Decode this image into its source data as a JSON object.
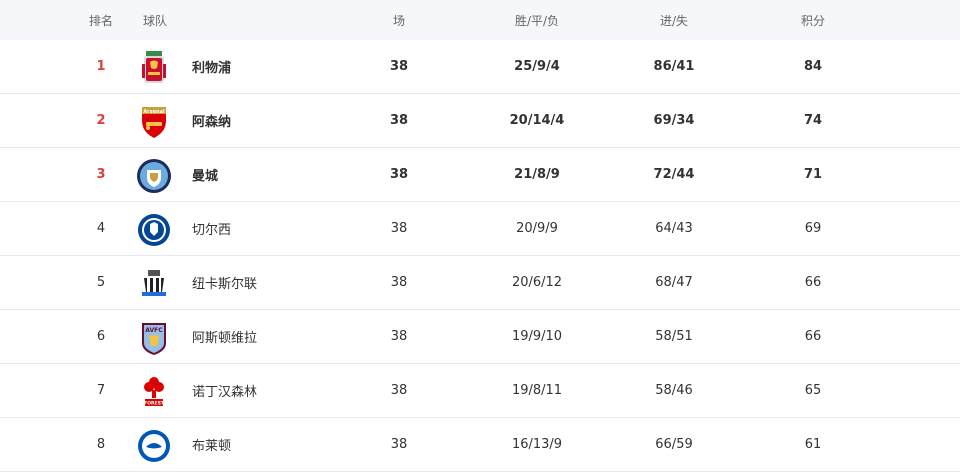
{
  "header": {
    "rank": "排名",
    "team": "球队",
    "played": "场",
    "wdl": "胜/平/负",
    "goals": "进/失",
    "points": "积分"
  },
  "colors": {
    "header_bg": "#f5f7fa",
    "top_rank": "#d9423b",
    "divider": "#e6e9ee"
  },
  "rows": [
    {
      "rank": "1",
      "team": "利物浦",
      "played": "38",
      "wdl": "25/9/4",
      "goals": "86/41",
      "points": "84",
      "icon": "liverpool-crest-icon"
    },
    {
      "rank": "2",
      "team": "阿森纳",
      "played": "38",
      "wdl": "20/14/4",
      "goals": "69/34",
      "points": "74",
      "icon": "arsenal-crest-icon",
      "crest_text": "Arsenal"
    },
    {
      "rank": "3",
      "team": "曼城",
      "played": "38",
      "wdl": "21/8/9",
      "goals": "72/44",
      "points": "71",
      "icon": "manchester-city-crest-icon"
    },
    {
      "rank": "4",
      "team": "切尔西",
      "played": "38",
      "wdl": "20/9/9",
      "goals": "64/43",
      "points": "69",
      "icon": "chelsea-crest-icon"
    },
    {
      "rank": "5",
      "team": "纽卡斯尔联",
      "played": "38",
      "wdl": "20/6/12",
      "goals": "68/47",
      "points": "66",
      "icon": "newcastle-crest-icon"
    },
    {
      "rank": "6",
      "team": "阿斯顿维拉",
      "played": "38",
      "wdl": "19/9/10",
      "goals": "58/51",
      "points": "66",
      "icon": "aston-villa-crest-icon",
      "crest_text": "AVFC"
    },
    {
      "rank": "7",
      "team": "诺丁汉森林",
      "played": "38",
      "wdl": "19/8/11",
      "goals": "58/46",
      "points": "65",
      "icon": "nottingham-forest-crest-icon",
      "crest_text": "FOREST"
    },
    {
      "rank": "8",
      "team": "布莱顿",
      "played": "38",
      "wdl": "16/13/9",
      "goals": "66/59",
      "points": "61",
      "icon": "brighton-crest-icon"
    }
  ]
}
